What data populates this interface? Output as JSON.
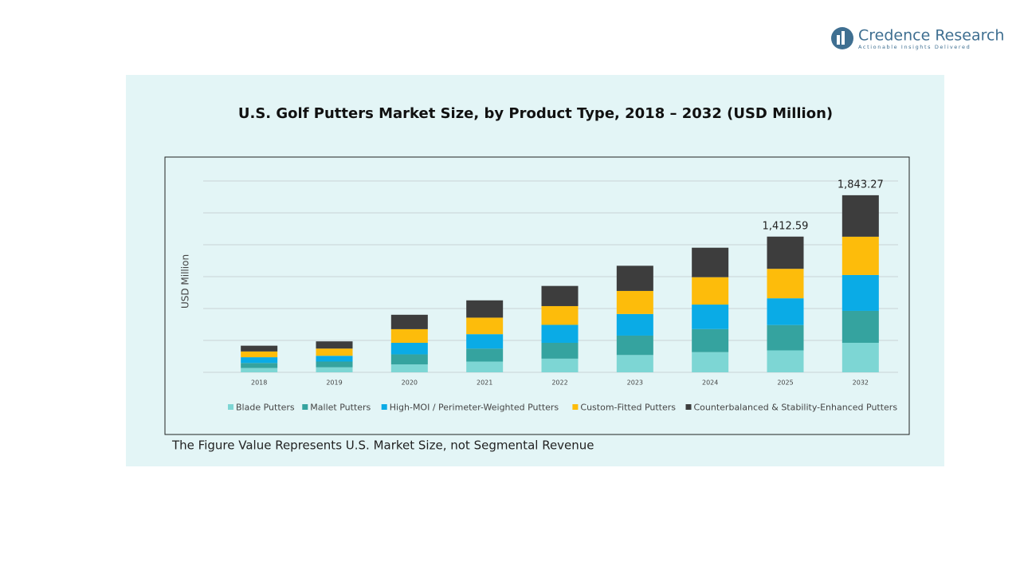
{
  "brand": {
    "name": "Credence Research",
    "tagline": "Actionable Insights Delivered"
  },
  "chart_data": {
    "type": "stacked_bar",
    "title": "U.S. Golf Putters Market Size, by Product Type, 2018 – 2032 (USD Million)",
    "y_label": "USD Million",
    "note": "The Figure Value Represents U.S. Market Size, not Segmental Revenue",
    "categories": [
      "2018",
      "2019",
      "2020",
      "2021",
      "2022",
      "2023",
      "2024",
      "2025",
      "2032"
    ],
    "series": [
      {
        "name": "Blade Putters",
        "color": "#7dd6d4",
        "values": [
          45,
          52,
          82,
          112,
          142,
          180,
          210,
          228.3,
          307.2
        ]
      },
      {
        "name": "Mallet Putters",
        "color": "#35a39f",
        "values": [
          52,
          60,
          105,
          135,
          165,
          202,
          240,
          263.96,
          332.1
        ]
      },
      {
        "name": "High-MOI / Perimeter-Weighted Putters",
        "color": "#0aabe6",
        "values": [
          60,
          60,
          120,
          150,
          187,
          225,
          255,
          278.23,
          373.6
        ]
      },
      {
        "name": "Custom-Fitted Putters",
        "color": "#fdbc0b",
        "values": [
          60,
          75,
          142,
          172,
          195,
          240,
          285,
          306.77,
          398.6
        ]
      },
      {
        "name": "Counterbalanced & Stability-Enhanced Putters",
        "color": "#3d3d3d",
        "values": [
          60,
          75,
          150,
          180,
          210,
          262,
          307,
          335.33,
          431.77
        ]
      }
    ],
    "totals": [
      null,
      null,
      null,
      null,
      null,
      null,
      null,
      1412.59,
      1843.27
    ],
    "total_labels": [
      null,
      null,
      null,
      null,
      null,
      null,
      null,
      "1,412.59",
      "1,843.27"
    ],
    "ylim": [
      0,
      2000
    ],
    "grid": true
  }
}
